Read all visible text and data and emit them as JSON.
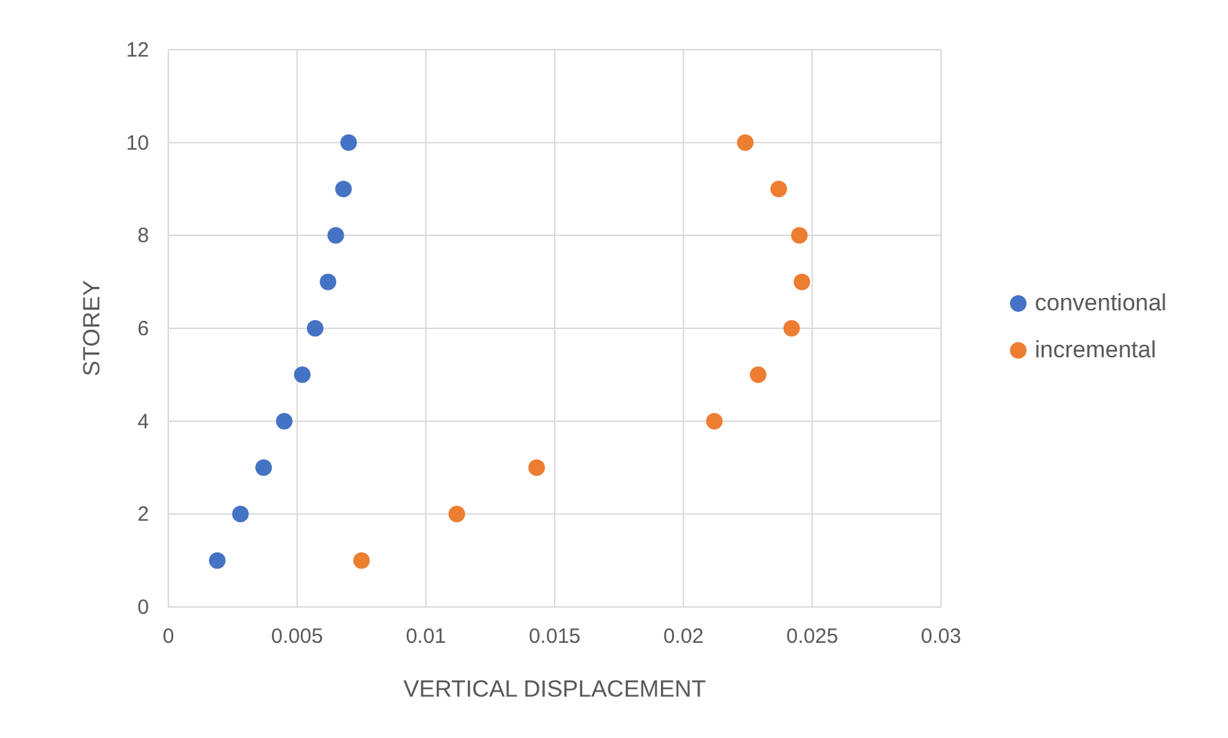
{
  "chart_data": {
    "type": "scatter",
    "xlabel": "VERTICAL DISPLACEMENT",
    "ylabel": "STOREY",
    "xlim": [
      0,
      0.03
    ],
    "xticks": [
      0,
      0.005,
      0.01,
      0.015,
      0.02,
      0.025,
      0.03
    ],
    "ylim": [
      0,
      12
    ],
    "yticks": [
      0,
      2,
      4,
      6,
      8,
      10,
      12
    ],
    "grid": true,
    "legend": "right",
    "marker": "circle",
    "series": [
      {
        "name": "conventional",
        "color": "#4472c4",
        "x": [
          0.0019,
          0.0028,
          0.0037,
          0.0045,
          0.0052,
          0.0057,
          0.0062,
          0.0065,
          0.0068,
          0.007
        ],
        "values": [
          1,
          2,
          3,
          4,
          5,
          6,
          7,
          8,
          9,
          10
        ]
      },
      {
        "name": "incremental",
        "color": "#ed7d31",
        "x": [
          0.0075,
          0.0112,
          0.0143,
          0.0212,
          0.0229,
          0.0242,
          0.0246,
          0.0245,
          0.0237,
          0.0224
        ],
        "values": [
          1,
          2,
          3,
          4,
          5,
          6,
          7,
          8,
          9,
          10
        ]
      }
    ]
  }
}
